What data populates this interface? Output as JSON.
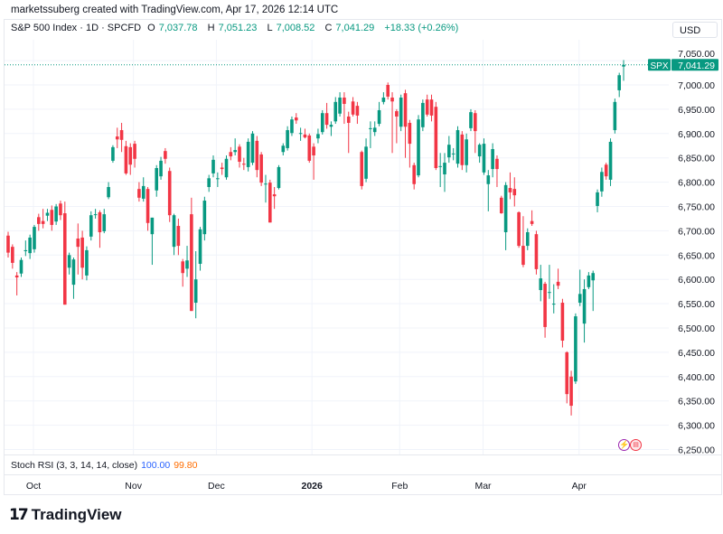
{
  "credit": "marketssuberg created with TradingView.com, Apr 17, 2026 12:14 UTC",
  "legend": {
    "symbol": "S&P 500 Index · 1D · SPCFD",
    "open_label": "O",
    "open": "7,037.78",
    "high_label": "H",
    "high": "7,051.23",
    "low_label": "L",
    "low": "7,008.52",
    "close_label": "C",
    "close": "7,041.29",
    "change": "+18.33 (+0.26%)"
  },
  "currency": "USD",
  "last_price": {
    "symbol": "SPX",
    "value": "7,041.29",
    "price": 7041.29
  },
  "indicator": {
    "name": "Stoch RSI (3, 3, 14, 14, close)",
    "k": "100.00",
    "d": "99.80",
    "k_color": "#2962ff",
    "d_color": "#ff6d00"
  },
  "brand": "TradingView",
  "event_icons": [
    "lightning-icon",
    "us-flag-icon"
  ],
  "colors": {
    "up": "#089981",
    "down": "#f23645"
  },
  "chart_data": {
    "type": "candlestick",
    "interval": "1D",
    "ylim": [
      6230,
      7075
    ],
    "y_ticks": [
      "7,050.00",
      "7,000.00",
      "6,950.00",
      "6,900.00",
      "6,850.00",
      "6,800.00",
      "6,750.00",
      "6,700.00",
      "6,650.00",
      "6,600.00",
      "6,550.00",
      "6,500.00",
      "6,450.00",
      "6,400.00",
      "6,350.00",
      "6,300.00",
      "6,250.00"
    ],
    "y_tick_values": [
      7050,
      7000,
      6950,
      6900,
      6850,
      6800,
      6750,
      6700,
      6650,
      6600,
      6550,
      6500,
      6450,
      6400,
      6350,
      6300,
      6250
    ],
    "x_ticks": [
      {
        "label": "Oct",
        "bold": false
      },
      {
        "label": "Nov",
        "bold": false
      },
      {
        "label": "Dec",
        "bold": false
      },
      {
        "label": "2026",
        "bold": true
      },
      {
        "label": "Feb",
        "bold": false
      },
      {
        "label": "Mar",
        "bold": false
      },
      {
        "label": "Apr",
        "bold": false
      }
    ],
    "grid": true,
    "ohlc": [
      [
        6690,
        6698,
        6645,
        6655
      ],
      [
        6667,
        6672,
        6622,
        6634
      ],
      [
        6608,
        6615,
        6567,
        6604
      ],
      [
        6612,
        6645,
        6605,
        6640
      ],
      [
        6658,
        6680,
        6648,
        6660
      ],
      [
        6654,
        6692,
        6642,
        6686
      ],
      [
        6662,
        6712,
        6655,
        6708
      ],
      [
        6728,
        6735,
        6700,
        6714
      ],
      [
        6720,
        6745,
        6705,
        6714
      ],
      [
        6731,
        6745,
        6720,
        6737
      ],
      [
        6743,
        6752,
        6700,
        6712
      ],
      [
        6719,
        6755,
        6712,
        6750
      ],
      [
        6756,
        6762,
        6722,
        6732
      ],
      [
        6736,
        6760,
        6548,
        6548
      ],
      [
        6624,
        6655,
        6610,
        6650
      ],
      [
        6589,
        6645,
        6560,
        6641
      ],
      [
        6684,
        6715,
        6610,
        6667
      ],
      [
        6686,
        6700,
        6600,
        6624
      ],
      [
        6608,
        6668,
        6598,
        6660
      ],
      [
        6688,
        6740,
        6680,
        6732
      ],
      [
        6734,
        6745,
        6725,
        6734
      ],
      [
        6738,
        6742,
        6665,
        6697
      ],
      [
        6699,
        6745,
        6695,
        6734
      ],
      [
        6769,
        6800,
        6765,
        6790
      ],
      [
        6844,
        6876,
        6840,
        6872
      ],
      [
        6894,
        6912,
        6870,
        6888
      ],
      [
        6907,
        6922,
        6862,
        6887
      ],
      [
        6874,
        6885,
        6815,
        6818
      ],
      [
        6872,
        6880,
        6815,
        6836
      ],
      [
        6879,
        6885,
        6830,
        6848
      ],
      [
        6786,
        6800,
        6760,
        6768
      ],
      [
        6766,
        6810,
        6760,
        6792
      ],
      [
        6786,
        6790,
        6700,
        6716
      ],
      [
        6693,
        6727,
        6630,
        6727
      ],
      [
        6783,
        6835,
        6770,
        6829
      ],
      [
        6812,
        6852,
        6805,
        6844
      ],
      [
        6864,
        6870,
        6838,
        6848
      ],
      [
        6823,
        6830,
        6718,
        6732
      ],
      [
        6667,
        6735,
        6650,
        6732
      ],
      [
        6710,
        6725,
        6650,
        6669
      ],
      [
        6637,
        6642,
        6585,
        6613
      ],
      [
        6622,
        6669,
        6605,
        6639
      ],
      [
        6734,
        6768,
        6535,
        6535
      ],
      [
        6552,
        6658,
        6520,
        6600
      ],
      [
        6632,
        6708,
        6618,
        6703
      ],
      [
        6693,
        6770,
        6680,
        6762
      ],
      [
        6790,
        6815,
        6780,
        6808
      ],
      [
        6818,
        6855,
        6810,
        6846
      ],
      [
        6808,
        6820,
        6790,
        6808
      ],
      [
        6830,
        6840,
        6815,
        6827
      ],
      [
        6810,
        6855,
        6805,
        6848
      ],
      [
        6862,
        6872,
        6845,
        6853
      ],
      [
        6862,
        6890,
        6855,
        6866
      ],
      [
        6873,
        6878,
        6830,
        6842
      ],
      [
        6838,
        6850,
        6825,
        6836
      ],
      [
        6831,
        6890,
        6822,
        6883
      ],
      [
        6840,
        6905,
        6835,
        6900
      ],
      [
        6885,
        6895,
        6810,
        6825
      ],
      [
        6857,
        6862,
        6792,
        6799
      ],
      [
        6797,
        6815,
        6758,
        6797
      ],
      [
        6799,
        6805,
        6717,
        6717
      ],
      [
        6775,
        6790,
        6745,
        6771
      ],
      [
        6788,
        6835,
        6785,
        6831
      ],
      [
        6862,
        6880,
        6855,
        6875
      ],
      [
        6870,
        6915,
        6865,
        6907
      ],
      [
        6901,
        6935,
        6895,
        6929
      ],
      [
        6933,
        6942,
        6920,
        6927
      ],
      [
        6901,
        6912,
        6885,
        6901
      ],
      [
        6898,
        6910,
        6890,
        6892
      ],
      [
        6896,
        6900,
        6840,
        6844
      ],
      [
        6873,
        6880,
        6805,
        6855
      ],
      [
        6890,
        6910,
        6880,
        6899
      ],
      [
        6903,
        6948,
        6898,
        6942
      ],
      [
        6942,
        6963,
        6910,
        6918
      ],
      [
        6914,
        6925,
        6895,
        6918
      ],
      [
        6925,
        6975,
        6920,
        6965
      ],
      [
        6941,
        6985,
        6935,
        6974
      ],
      [
        6974,
        6985,
        6920,
        6961
      ],
      [
        6935,
        6945,
        6860,
        6922
      ],
      [
        6966,
        6975,
        6935,
        6939
      ],
      [
        6957,
        6965,
        6920,
        6937
      ],
      [
        6862,
        6865,
        6785,
        6792
      ],
      [
        6807,
        6890,
        6800,
        6873
      ],
      [
        6911,
        6925,
        6870,
        6911
      ],
      [
        6903,
        6925,
        6895,
        6912
      ],
      [
        6920,
        6965,
        6915,
        6948
      ],
      [
        6965,
        6985,
        6960,
        6974
      ],
      [
        7000,
        7005,
        6970,
        6976
      ],
      [
        6974,
        6985,
        6860,
        6966
      ],
      [
        6946,
        6950,
        6880,
        6935
      ],
      [
        6914,
        6980,
        6905,
        6974
      ],
      [
        6983,
        6990,
        6850,
        6914
      ],
      [
        6922,
        6928,
        6830,
        6879
      ],
      [
        6835,
        6840,
        6785,
        6796
      ],
      [
        6814,
        6938,
        6810,
        6929
      ],
      [
        6913,
        6970,
        6905,
        6963
      ],
      [
        6970,
        6980,
        6935,
        6939
      ],
      [
        6970,
        6980,
        6925,
        6937
      ],
      [
        6955,
        6965,
        6825,
        6829
      ],
      [
        6833,
        6860,
        6790,
        6833
      ],
      [
        6816,
        6860,
        6780,
        6840
      ],
      [
        6851,
        6895,
        6840,
        6877
      ],
      [
        6859,
        6870,
        6845,
        6859
      ],
      [
        6838,
        6915,
        6830,
        6907
      ],
      [
        6898,
        6905,
        6825,
        6835
      ],
      [
        6835,
        6900,
        6820,
        6888
      ],
      [
        6911,
        6950,
        6905,
        6944
      ],
      [
        6942,
        6948,
        6860,
        6905
      ],
      [
        6853,
        6880,
        6840,
        6877
      ],
      [
        6820,
        6890,
        6815,
        6879
      ],
      [
        6796,
        6825,
        6740,
        6814
      ],
      [
        6827,
        6880,
        6810,
        6868
      ],
      [
        6848,
        6855,
        6790,
        6827
      ],
      [
        6768,
        6772,
        6735,
        6736
      ],
      [
        6697,
        6800,
        6660,
        6794
      ],
      [
        6788,
        6820,
        6765,
        6779
      ],
      [
        6786,
        6810,
        6750,
        6773
      ],
      [
        6738,
        6740,
        6665,
        6669
      ],
      [
        6669,
        6730,
        6625,
        6630
      ],
      [
        6669,
        6705,
        6660,
        6697
      ],
      [
        6720,
        6742,
        6710,
        6714
      ],
      [
        6693,
        6700,
        6610,
        6621
      ],
      [
        6578,
        6630,
        6555,
        6602
      ],
      [
        6591,
        6595,
        6480,
        6502
      ],
      [
        6574,
        6630,
        6560,
        6574
      ],
      [
        6550,
        6590,
        6530,
        6550
      ],
      [
        6595,
        6622,
        6580,
        6587
      ],
      [
        6552,
        6560,
        6460,
        6474
      ],
      [
        6450,
        6452,
        6345,
        6364
      ],
      [
        6400,
        6412,
        6320,
        6340
      ],
      [
        6390,
        6530,
        6385,
        6524
      ],
      [
        6552,
        6620,
        6545,
        6570
      ],
      [
        6509,
        6600,
        6470,
        6580
      ],
      [
        6584,
        6615,
        6580,
        6608
      ],
      [
        6598,
        6618,
        6535,
        6613
      ],
      [
        6751,
        6785,
        6738,
        6779
      ],
      [
        6781,
        6830,
        6770,
        6821
      ],
      [
        6836,
        6840,
        6805,
        6812
      ],
      [
        6805,
        6890,
        6792,
        6883
      ],
      [
        6907,
        6972,
        6900,
        6965
      ],
      [
        6989,
        7025,
        6975,
        7020
      ],
      [
        7037.78,
        7051.23,
        7008.52,
        7041.29
      ]
    ]
  }
}
